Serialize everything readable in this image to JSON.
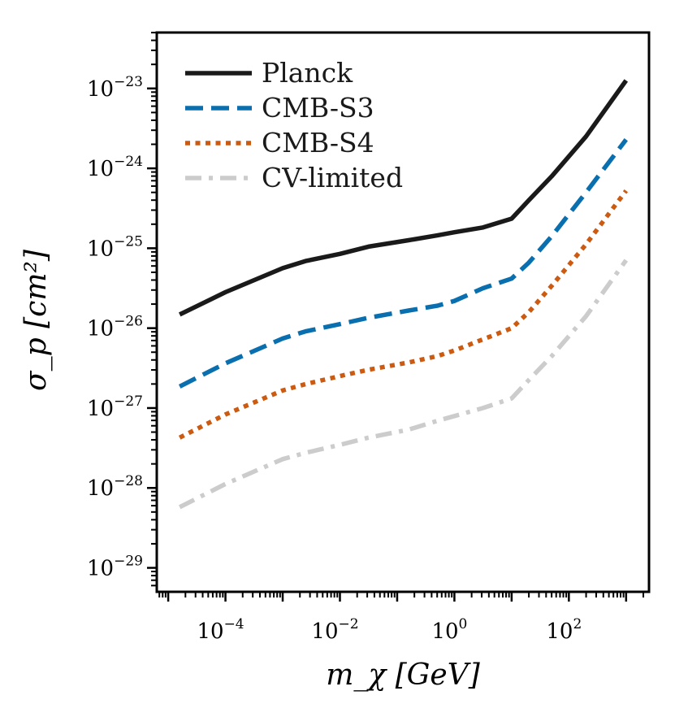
{
  "chart_data": {
    "type": "line",
    "title": "",
    "xlabel": "m_χ [GeV]",
    "ylabel": "σ_p [cm²]",
    "xscale": "log",
    "yscale": "log",
    "xlim_log10": [
      -5.2,
      3.4
    ],
    "ylim_log10": [
      -29.3,
      -22.3
    ],
    "legend_position": "top-left",
    "x_ticks": [
      {
        "exp": -4,
        "base": "10",
        "sup": "−4"
      },
      {
        "exp": -2,
        "base": "10",
        "sup": "−2"
      },
      {
        "exp": 0,
        "base": "10",
        "sup": "0"
      },
      {
        "exp": 2,
        "base": "10",
        "sup": "2"
      }
    ],
    "y_ticks": [
      {
        "exp": -23,
        "base": "10",
        "sup": "−23"
      },
      {
        "exp": -24,
        "base": "10",
        "sup": "−24"
      },
      {
        "exp": -25,
        "base": "10",
        "sup": "−25"
      },
      {
        "exp": -26,
        "base": "10",
        "sup": "−26"
      },
      {
        "exp": -27,
        "base": "10",
        "sup": "−27"
      },
      {
        "exp": -28,
        "base": "10",
        "sup": "−28"
      },
      {
        "exp": -29,
        "base": "10",
        "sup": "−29"
      }
    ],
    "series": [
      {
        "name": "Planck",
        "color": "#1a1a1a",
        "dash": "solid",
        "log10_x": [
          -4.8,
          -4.0,
          -3.0,
          -2.6,
          -2.0,
          -1.5,
          -0.8,
          -0.3,
          0.0,
          0.5,
          1.0,
          1.3,
          1.7,
          2.3,
          3.0
        ],
        "log10_y": [
          -25.83,
          -25.55,
          -25.25,
          -25.16,
          -25.07,
          -24.98,
          -24.9,
          -24.84,
          -24.8,
          -24.74,
          -24.63,
          -24.4,
          -24.1,
          -23.6,
          -22.9
        ]
      },
      {
        "name": "CMB-S3",
        "color": "#0a6fae",
        "dash": "dashed",
        "log10_x": [
          -4.8,
          -4.0,
          -3.0,
          -2.6,
          -2.0,
          -1.5,
          -0.8,
          -0.3,
          0.0,
          0.5,
          1.0,
          1.3,
          1.7,
          2.3,
          3.0
        ],
        "log10_y": [
          -26.73,
          -26.44,
          -26.13,
          -26.04,
          -25.95,
          -25.87,
          -25.78,
          -25.72,
          -25.66,
          -25.5,
          -25.38,
          -25.18,
          -24.85,
          -24.3,
          -23.64
        ]
      },
      {
        "name": "CMB-S4",
        "color": "#cc5a10",
        "dash": "dotted",
        "log10_x": [
          -4.8,
          -4.0,
          -3.0,
          -2.6,
          -2.0,
          -1.5,
          -0.8,
          -0.3,
          0.0,
          0.5,
          1.0,
          1.3,
          1.7,
          2.3,
          3.0
        ],
        "log10_y": [
          -27.37,
          -27.08,
          -26.78,
          -26.7,
          -26.6,
          -26.52,
          -26.43,
          -26.35,
          -26.28,
          -26.14,
          -26.0,
          -25.8,
          -25.47,
          -24.95,
          -24.28
        ]
      },
      {
        "name": "CV-limited",
        "color": "#cccccc",
        "dash": "dashdot",
        "log10_x": [
          -4.8,
          -4.0,
          -3.0,
          -2.6,
          -2.0,
          -1.5,
          -0.8,
          -0.3,
          0.0,
          0.5,
          1.0,
          1.3,
          1.7,
          2.3,
          3.0
        ],
        "log10_y": [
          -28.24,
          -27.95,
          -27.64,
          -27.56,
          -27.46,
          -27.37,
          -27.27,
          -27.16,
          -27.1,
          -27.0,
          -26.88,
          -26.65,
          -26.35,
          -25.85,
          -25.15
        ]
      }
    ]
  }
}
